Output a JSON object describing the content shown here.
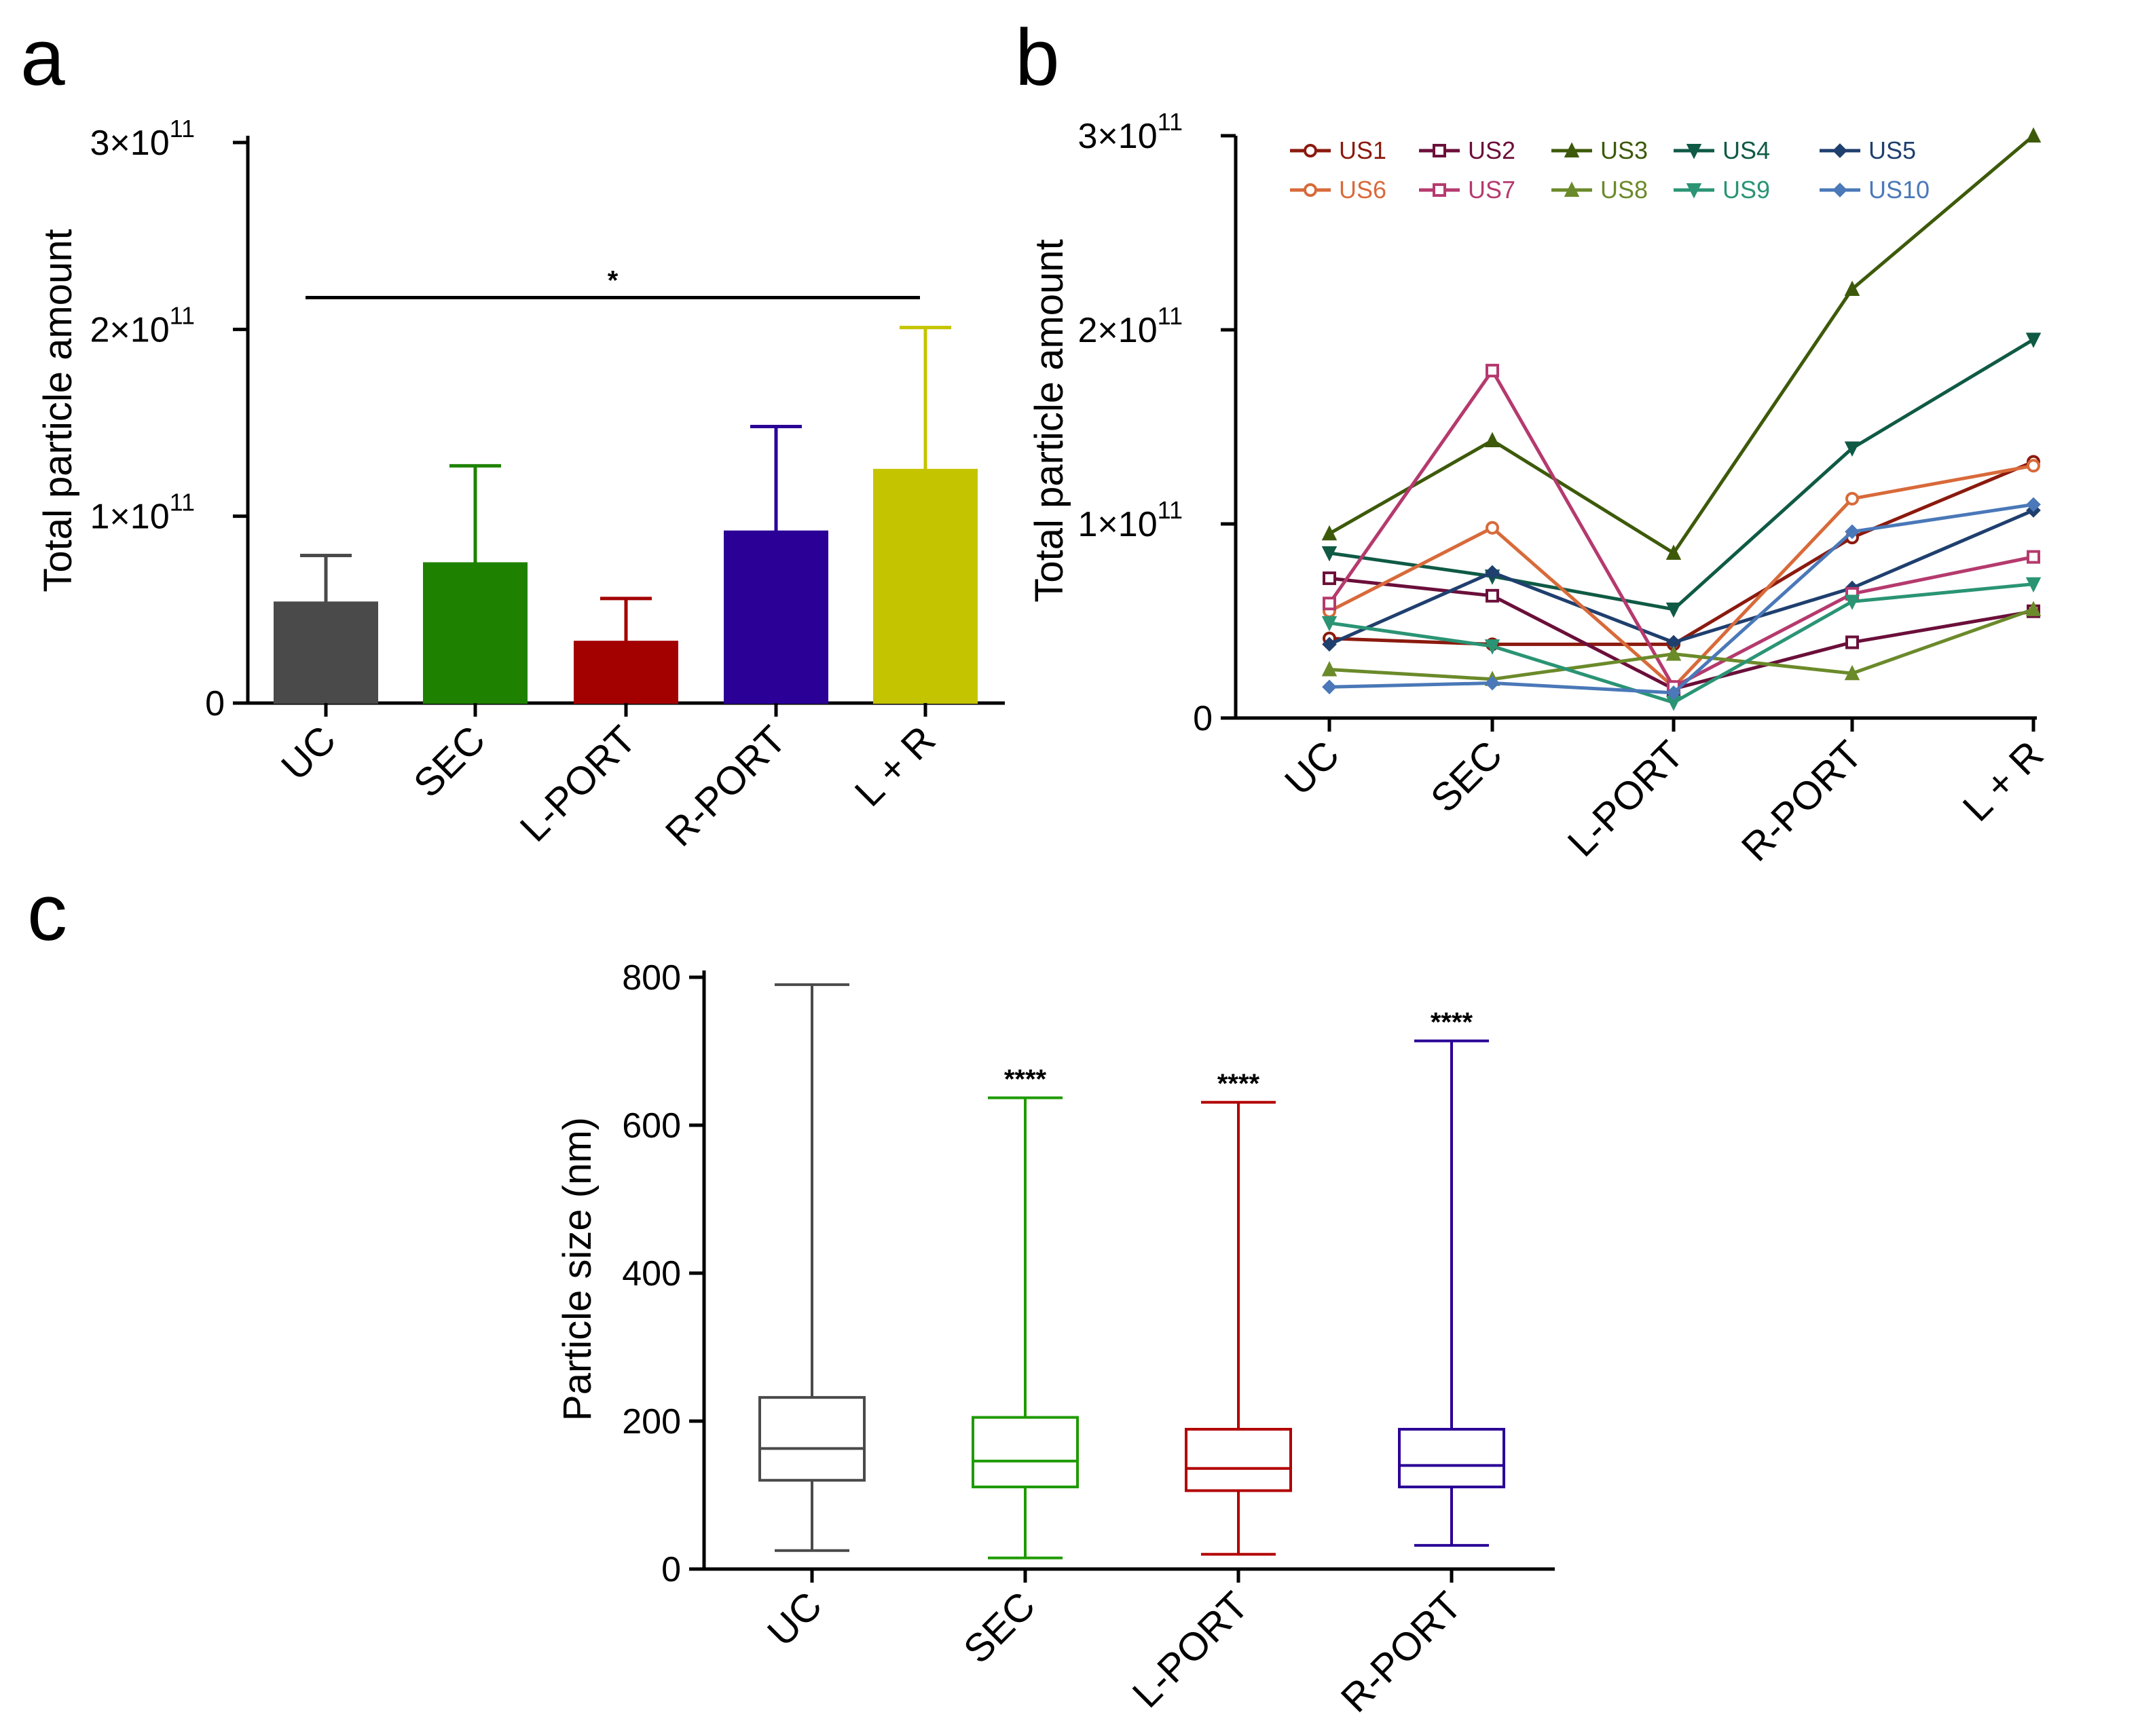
{
  "panel_labels": {
    "a": "a",
    "b": "b",
    "c": "c"
  },
  "chart_data": [
    {
      "id": "a",
      "type": "bar",
      "title": "",
      "xlabel": "",
      "ylabel": "Total particle amount",
      "ylim": [
        0,
        300000000000.0
      ],
      "yticks": [
        {
          "value": 0,
          "label": "0"
        },
        {
          "value": 100000000000.0,
          "label": "1×10",
          "exp": "11"
        },
        {
          "value": 200000000000.0,
          "label": "2×10",
          "exp": "11"
        },
        {
          "value": 300000000000.0,
          "label": "3×10",
          "exp": "11"
        }
      ],
      "categories": [
        "UC",
        "SEC",
        "L-PORT",
        "R-PORT",
        "L + R"
      ],
      "values": [
        54000000000.0,
        75000000000.0,
        33000000000.0,
        92000000000.0,
        125000000000.0
      ],
      "errors_upper": [
        79000000000.0,
        127000000000.0,
        56000000000.0,
        148000000000.0,
        201000000000.0
      ],
      "colors": [
        "#4a4a4a",
        "#1e8200",
        "#a30000",
        "#2a0096",
        "#c4c400"
      ],
      "significance": {
        "from": "UC",
        "to": "L + R",
        "label": "*",
        "level": 217000000000.0
      }
    },
    {
      "id": "b",
      "type": "line",
      "title": "",
      "xlabel": "",
      "ylabel": "Total particle amount",
      "ylim": [
        0,
        300000000000.0
      ],
      "yticks": [
        {
          "value": 0,
          "label": "0"
        },
        {
          "value": 100000000000.0,
          "label": "1×10",
          "exp": "11"
        },
        {
          "value": 200000000000.0,
          "label": "2×10",
          "exp": "11"
        },
        {
          "value": 300000000000.0,
          "label": "3×10",
          "exp": "11"
        }
      ],
      "categories": [
        "UC",
        "SEC",
        "L-PORT",
        "R-PORT",
        "L + R"
      ],
      "legend_position": "top",
      "series": [
        {
          "name": "US1",
          "color": "#8b1a0e",
          "marker": "circle",
          "values": [
            41000000000.0,
            38000000000.0,
            38000000000.0,
            93000000000.0,
            132000000000.0
          ]
        },
        {
          "name": "US2",
          "color": "#6b0f3a",
          "marker": "square",
          "values": [
            72000000000.0,
            63000000000.0,
            15000000000.0,
            39000000000.0,
            55000000000.0
          ]
        },
        {
          "name": "US3",
          "color": "#3d5a0a",
          "marker": "triangle",
          "values": [
            95000000000.0,
            143000000000.0,
            85000000000.0,
            221000000000.0,
            300000000000.0
          ]
        },
        {
          "name": "US4",
          "color": "#0f5a45",
          "marker": "triangle-down",
          "values": [
            85000000000.0,
            73000000000.0,
            56000000000.0,
            139000000000.0,
            195000000000.0
          ]
        },
        {
          "name": "US5",
          "color": "#1f3f6e",
          "marker": "diamond",
          "values": [
            38000000000.0,
            75000000000.0,
            39000000000.0,
            67000000000.0,
            107000000000.0
          ]
        },
        {
          "name": "US6",
          "color": "#d86a3a",
          "marker": "circle",
          "values": [
            55000000000.0,
            98000000000.0,
            16000000000.0,
            113000000000.0,
            130000000000.0
          ]
        },
        {
          "name": "US7",
          "color": "#b53a6e",
          "marker": "square",
          "values": [
            59000000000.0,
            179000000000.0,
            16000000000.0,
            64000000000.0,
            83000000000.0
          ]
        },
        {
          "name": "US8",
          "color": "#6b8a2a",
          "marker": "triangle",
          "values": [
            25000000000.0,
            20000000000.0,
            33000000000.0,
            23000000000.0,
            56000000000.0
          ]
        },
        {
          "name": "US9",
          "color": "#2a9474",
          "marker": "triangle-down",
          "values": [
            49000000000.0,
            37000000000.0,
            8000000000.0,
            60000000000.0,
            69000000000.0
          ]
        },
        {
          "name": "US10",
          "color": "#4a78b8",
          "marker": "diamond",
          "values": [
            16000000000.0,
            18000000000.0,
            13000000000.0,
            96000000000.0,
            110000000000.0
          ]
        }
      ]
    },
    {
      "id": "c",
      "type": "box",
      "title": "",
      "xlabel": "",
      "ylabel": "Particle size (nm)",
      "ylim": [
        0,
        800
      ],
      "yticks": [
        {
          "value": 0,
          "label": "0"
        },
        {
          "value": 200,
          "label": "200"
        },
        {
          "value": 400,
          "label": "400"
        },
        {
          "value": 600,
          "label": "600"
        },
        {
          "value": 800,
          "label": "800"
        }
      ],
      "categories": [
        "UC",
        "SEC",
        "L-PORT",
        "R-PORT"
      ],
      "boxes": [
        {
          "name": "UC",
          "color": "#4a4a4a",
          "min": 25,
          "q1": 120,
          "median": 163,
          "q3": 232,
          "max": 790,
          "annotation": ""
        },
        {
          "name": "SEC",
          "color": "#1e9a00",
          "min": 15,
          "q1": 111,
          "median": 146,
          "q3": 205,
          "max": 637,
          "annotation": "****"
        },
        {
          "name": "L-PORT",
          "color": "#b30000",
          "min": 20,
          "q1": 106,
          "median": 136,
          "q3": 189,
          "max": 631,
          "annotation": "****"
        },
        {
          "name": "R-PORT",
          "color": "#2a0096",
          "min": 32,
          "q1": 111,
          "median": 140,
          "q3": 189,
          "max": 714,
          "annotation": "****"
        }
      ]
    }
  ]
}
